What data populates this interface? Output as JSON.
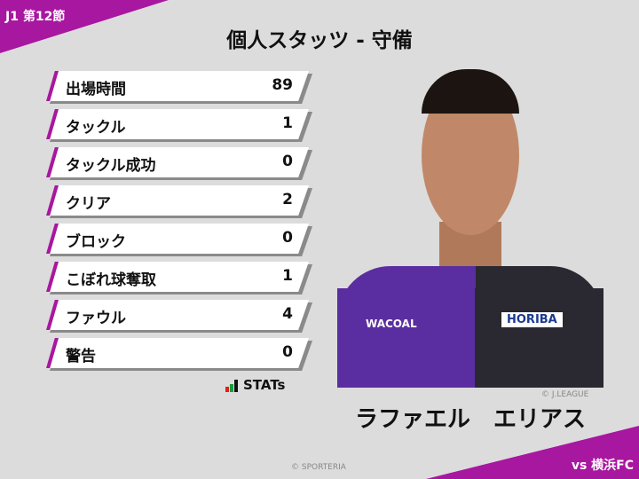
{
  "header": {
    "round": "J1 第12節",
    "title": "個人スタッツ - 守備",
    "opponent": "vs 横浜FC"
  },
  "stats": [
    {
      "label": "出場時間",
      "value": "89"
    },
    {
      "label": "タックル",
      "value": "1"
    },
    {
      "label": "タックル成功",
      "value": "0"
    },
    {
      "label": "クリア",
      "value": "2"
    },
    {
      "label": "ブロック",
      "value": "0"
    },
    {
      "label": "こぼれ球奪取",
      "value": "1"
    },
    {
      "label": "ファウル",
      "value": "4"
    },
    {
      "label": "警告",
      "value": "0"
    }
  ],
  "logo": {
    "text": "STATs",
    "colors": [
      "#e0201b",
      "#1a9a3a",
      "#111111"
    ]
  },
  "player": {
    "name": "ラファエル　エリアス",
    "photo_credit": "© J.LEAGUE",
    "sponsors": [
      "WACOAL",
      "HORIBA"
    ]
  },
  "footer": {
    "credit": "© SPORTERIA"
  },
  "colors": {
    "accent": "#a8179f",
    "background": "#dcdcdc"
  }
}
